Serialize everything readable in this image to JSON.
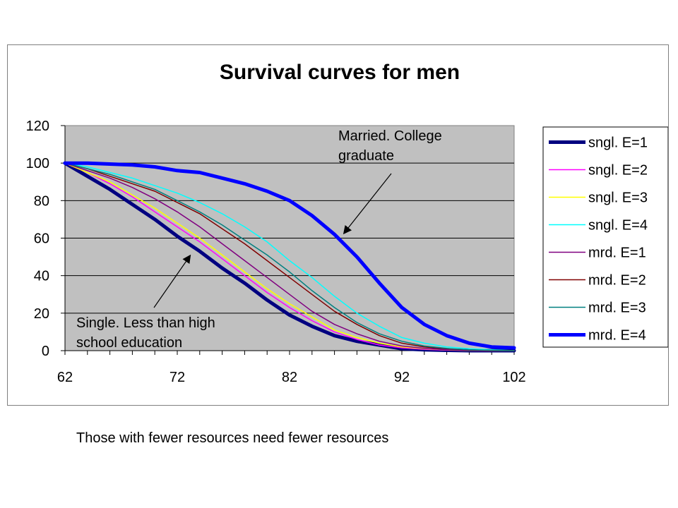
{
  "caption": "Those with fewer resources need fewer resources",
  "chart_data": {
    "type": "line",
    "title": "Survival curves for men",
    "xlabel": "",
    "ylabel": "",
    "xlim": [
      62,
      102
    ],
    "ylim": [
      0,
      120
    ],
    "x_ticks": [
      "62",
      "72",
      "82",
      "92",
      "102"
    ],
    "y_ticks": [
      "0",
      "20",
      "40",
      "60",
      "80",
      "100",
      "120"
    ],
    "grid": "horizontal",
    "plot_background": "#c0c0c0",
    "legend_position": "right",
    "x": [
      62,
      64,
      66,
      68,
      70,
      72,
      74,
      76,
      78,
      80,
      82,
      84,
      86,
      88,
      90,
      92,
      94,
      96,
      98,
      100,
      102
    ],
    "series": [
      {
        "name": "sngl. E=1",
        "color": "#000080",
        "width": 5,
        "values": [
          100,
          93,
          86,
          78,
          70,
          61,
          53,
          44,
          36,
          27,
          19,
          13,
          8,
          5,
          3,
          1,
          0.5,
          0.2,
          0,
          0,
          0
        ]
      },
      {
        "name": "sngl. E=2",
        "color": "#ff00ff",
        "width": 1.5,
        "values": [
          100,
          95,
          89,
          82,
          74,
          66,
          58,
          49,
          40,
          31,
          23,
          16,
          10,
          6,
          3,
          1.5,
          0.7,
          0.3,
          0.1,
          0,
          0
        ]
      },
      {
        "name": "sngl. E=3",
        "color": "#ffff00",
        "width": 1.5,
        "values": [
          100,
          95,
          90,
          83,
          76,
          68,
          60,
          51,
          42,
          33,
          25,
          18,
          11,
          7,
          4,
          2,
          1,
          0.4,
          0.1,
          0,
          0
        ]
      },
      {
        "name": "sngl. E=4",
        "color": "#00ffff",
        "width": 1.5,
        "values": [
          100,
          98,
          95,
          92,
          88,
          84,
          79,
          73,
          66,
          58,
          48,
          39,
          29,
          20,
          13,
          7,
          4,
          2,
          1,
          0.5,
          0
        ]
      },
      {
        "name": "mrd. E=1",
        "color": "#800080",
        "width": 1.5,
        "values": [
          100,
          96,
          92,
          87,
          81,
          74,
          66,
          57,
          48,
          39,
          30,
          21,
          14,
          9,
          5,
          2.5,
          1.2,
          0.5,
          0.2,
          0,
          0
        ]
      },
      {
        "name": "mrd. E=2",
        "color": "#800000",
        "width": 1.5,
        "values": [
          100,
          97,
          93,
          89,
          85,
          79,
          73,
          65,
          57,
          48,
          39,
          30,
          21,
          14,
          8,
          4,
          2,
          1,
          0.4,
          0.1,
          0
        ]
      },
      {
        "name": "mrd. E=3",
        "color": "#008080",
        "width": 1.5,
        "values": [
          100,
          97,
          94,
          90,
          86,
          80,
          74,
          67,
          59,
          51,
          42,
          32,
          23,
          15,
          9,
          5,
          2.5,
          1.2,
          0.5,
          0.2,
          0
        ]
      },
      {
        "name": "mrd. E=4",
        "color": "#0000ff",
        "width": 5,
        "values": [
          100,
          100,
          99.5,
          99,
          98,
          96,
          95,
          92,
          89,
          85,
          80,
          72,
          62,
          50,
          36,
          23,
          14,
          8,
          4,
          2,
          1.5
        ]
      }
    ],
    "annotations": [
      {
        "text_lines": [
          "Married.  College",
          "graduate"
        ],
        "arrow_to": [
          88,
          62
        ]
      },
      {
        "text_lines": [
          "Single.  Less than high",
          "school education"
        ],
        "arrow_to": [
          73.5,
          52
        ]
      }
    ]
  }
}
